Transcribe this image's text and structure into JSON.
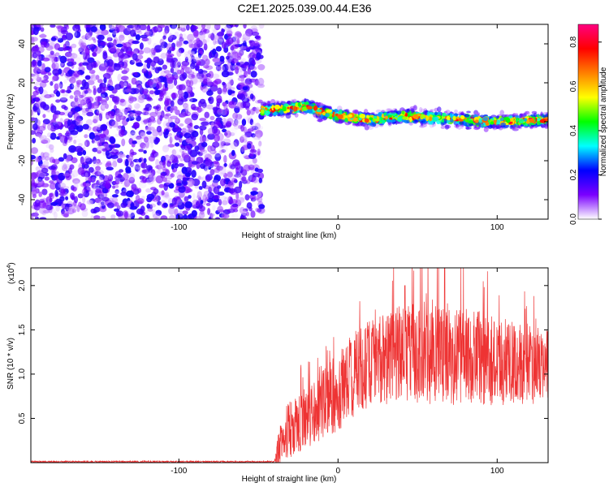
{
  "title": "C2E1.2025.039.00.44.E36",
  "chart_data": [
    {
      "type": "heatmap",
      "xlabel": "Height of straight line (km)",
      "ylabel": "Frequency (Hz)",
      "xlim": [
        -193,
        132
      ],
      "ylim": [
        -50,
        50
      ],
      "xticks": [
        -100,
        0,
        100
      ],
      "yticks": [
        -40,
        -20,
        0,
        20,
        40
      ],
      "xtick_labels": [
        "-100",
        "0",
        "100"
      ],
      "ytick_labels": [
        "-40",
        "-20",
        "0",
        "20",
        "40"
      ],
      "signal_band": {
        "x_start": -48,
        "x_end": 132,
        "center_freq": [
          {
            "x": -48,
            "y": 6
          },
          {
            "x": -30,
            "y": 7
          },
          {
            "x": -20,
            "y": 8
          },
          {
            "x": -10,
            "y": 5
          },
          {
            "x": 0,
            "y": 3
          },
          {
            "x": 10,
            "y": 2
          },
          {
            "x": 20,
            "y": 1
          },
          {
            "x": 40,
            "y": 3
          },
          {
            "x": 60,
            "y": 2
          },
          {
            "x": 80,
            "y": 1
          },
          {
            "x": 100,
            "y": 0
          },
          {
            "x": 132,
            "y": 1
          }
        ],
        "peak_amplitude": 0.85
      },
      "noise_region": {
        "x_start": -193,
        "x_end": -48,
        "amplitude_range": [
          0.0,
          0.2
        ]
      },
      "colorbar": {
        "label": "Normalized spectral amplitude",
        "range": [
          0,
          0.88
        ],
        "ticks": [
          0.0,
          0.2,
          0.4,
          0.6,
          0.8
        ],
        "tick_labels": [
          "0.0",
          "0.2",
          "0.4",
          "0.6",
          "0.8"
        ],
        "colors": [
          "#ffffff",
          "#7a00ff",
          "#0000ff",
          "#00ffff",
          "#00ff00",
          "#ffff00",
          "#ff8000",
          "#ff0000",
          "#ff0080"
        ]
      }
    },
    {
      "type": "line",
      "xlabel": "Height of straight line (km)",
      "ylabel": "SNR (10 * v/v)",
      "scale_label": "(x10",
      "scale_exponent": "4",
      "scale_suffix": ")",
      "xlim": [
        -193,
        132
      ],
      "ylim": [
        0,
        2.2
      ],
      "xticks": [
        -100,
        0,
        100
      ],
      "yticks": [
        0.5,
        1.0,
        1.5,
        2.0
      ],
      "xtick_labels": [
        "-100",
        "0",
        "100"
      ],
      "ytick_labels": [
        "0.5",
        "1.0",
        "1.5",
        "2.0"
      ],
      "series": [
        {
          "color": "#ee3333",
          "envelope": [
            {
              "x": -193,
              "mean": 0.01,
              "spread": 0.01
            },
            {
              "x": -40,
              "mean": 0.01,
              "spread": 0.01
            },
            {
              "x": -35,
              "mean": 0.3,
              "spread": 0.4
            },
            {
              "x": -30,
              "mean": 0.4,
              "spread": 0.35
            },
            {
              "x": -20,
              "mean": 0.5,
              "spread": 0.35
            },
            {
              "x": -10,
              "mean": 0.65,
              "spread": 0.4
            },
            {
              "x": 0,
              "mean": 0.8,
              "spread": 0.45
            },
            {
              "x": 10,
              "mean": 1.0,
              "spread": 0.5
            },
            {
              "x": 20,
              "mean": 1.1,
              "spread": 0.5
            },
            {
              "x": 40,
              "mean": 1.25,
              "spread": 0.55
            },
            {
              "x": 60,
              "mean": 1.25,
              "spread": 0.6
            },
            {
              "x": 80,
              "mean": 1.2,
              "spread": 0.55
            },
            {
              "x": 100,
              "mean": 1.15,
              "spread": 0.5
            },
            {
              "x": 120,
              "mean": 1.1,
              "spread": 0.45
            },
            {
              "x": 132,
              "mean": 1.1,
              "spread": 0.4
            }
          ],
          "peaks": [
            {
              "x": 42,
              "y": 2.0
            },
            {
              "x": 67,
              "y": 2.2
            },
            {
              "x": 88,
              "y": 1.7
            }
          ]
        }
      ]
    }
  ]
}
